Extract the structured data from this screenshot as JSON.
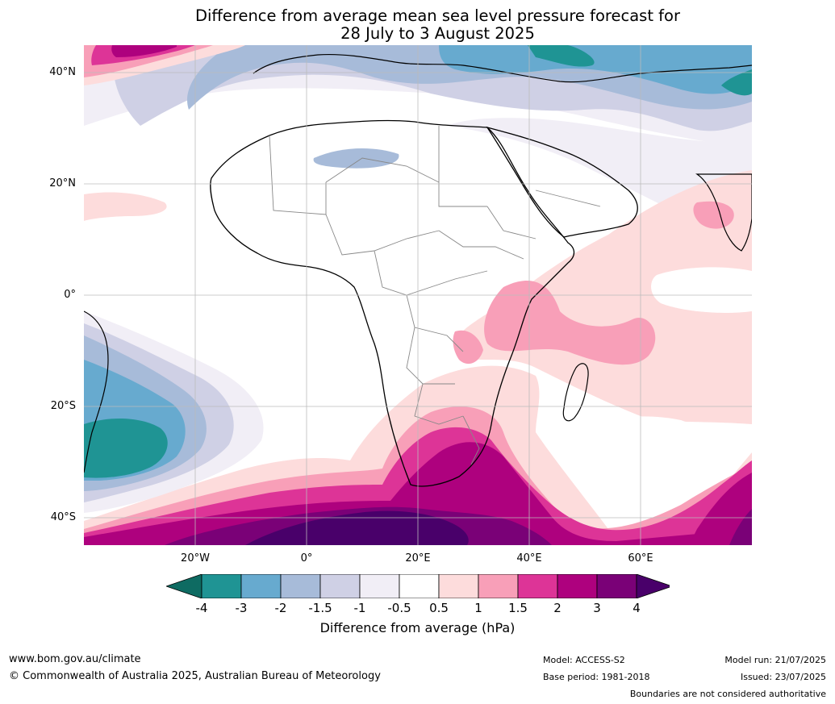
{
  "title": {
    "line1": "Difference from average mean sea level pressure forecast for",
    "line2": "28 July to 3 August 2025"
  },
  "axes": {
    "lat_labels": [
      "40°N",
      "20°N",
      "0°",
      "20°S",
      "40°S"
    ],
    "lon_labels": [
      "20°W",
      "0°",
      "20°E",
      "40°E",
      "60°E"
    ]
  },
  "legend": {
    "ticks": [
      "-4",
      "-3",
      "-2",
      "-1.5",
      "-1",
      "-0.5",
      "0.5",
      "1",
      "1.5",
      "2",
      "3",
      "4"
    ],
    "colors": [
      "#0e6b62",
      "#1f9494",
      "#67aacf",
      "#a7bbd9",
      "#cfd0e5",
      "#f1eef6",
      "#ffffff",
      "#fddcdc",
      "#f89fb8",
      "#dd3497",
      "#ae017e",
      "#7a0177",
      "#49006a"
    ],
    "label": "Difference from average (hPa)"
  },
  "footer": {
    "website": "www.bom.gov.au/climate",
    "copyright": "© Commonwealth of Australia 2025, Australian Bureau of Meteorology",
    "model": "Model: ACCESS-S2",
    "base_period": "Base period: 1981-2018",
    "model_run": "Model run: 21/07/2025",
    "issued": "Issued: 23/07/2025",
    "boundaries": "Boundaries are not considered authoritative"
  }
}
